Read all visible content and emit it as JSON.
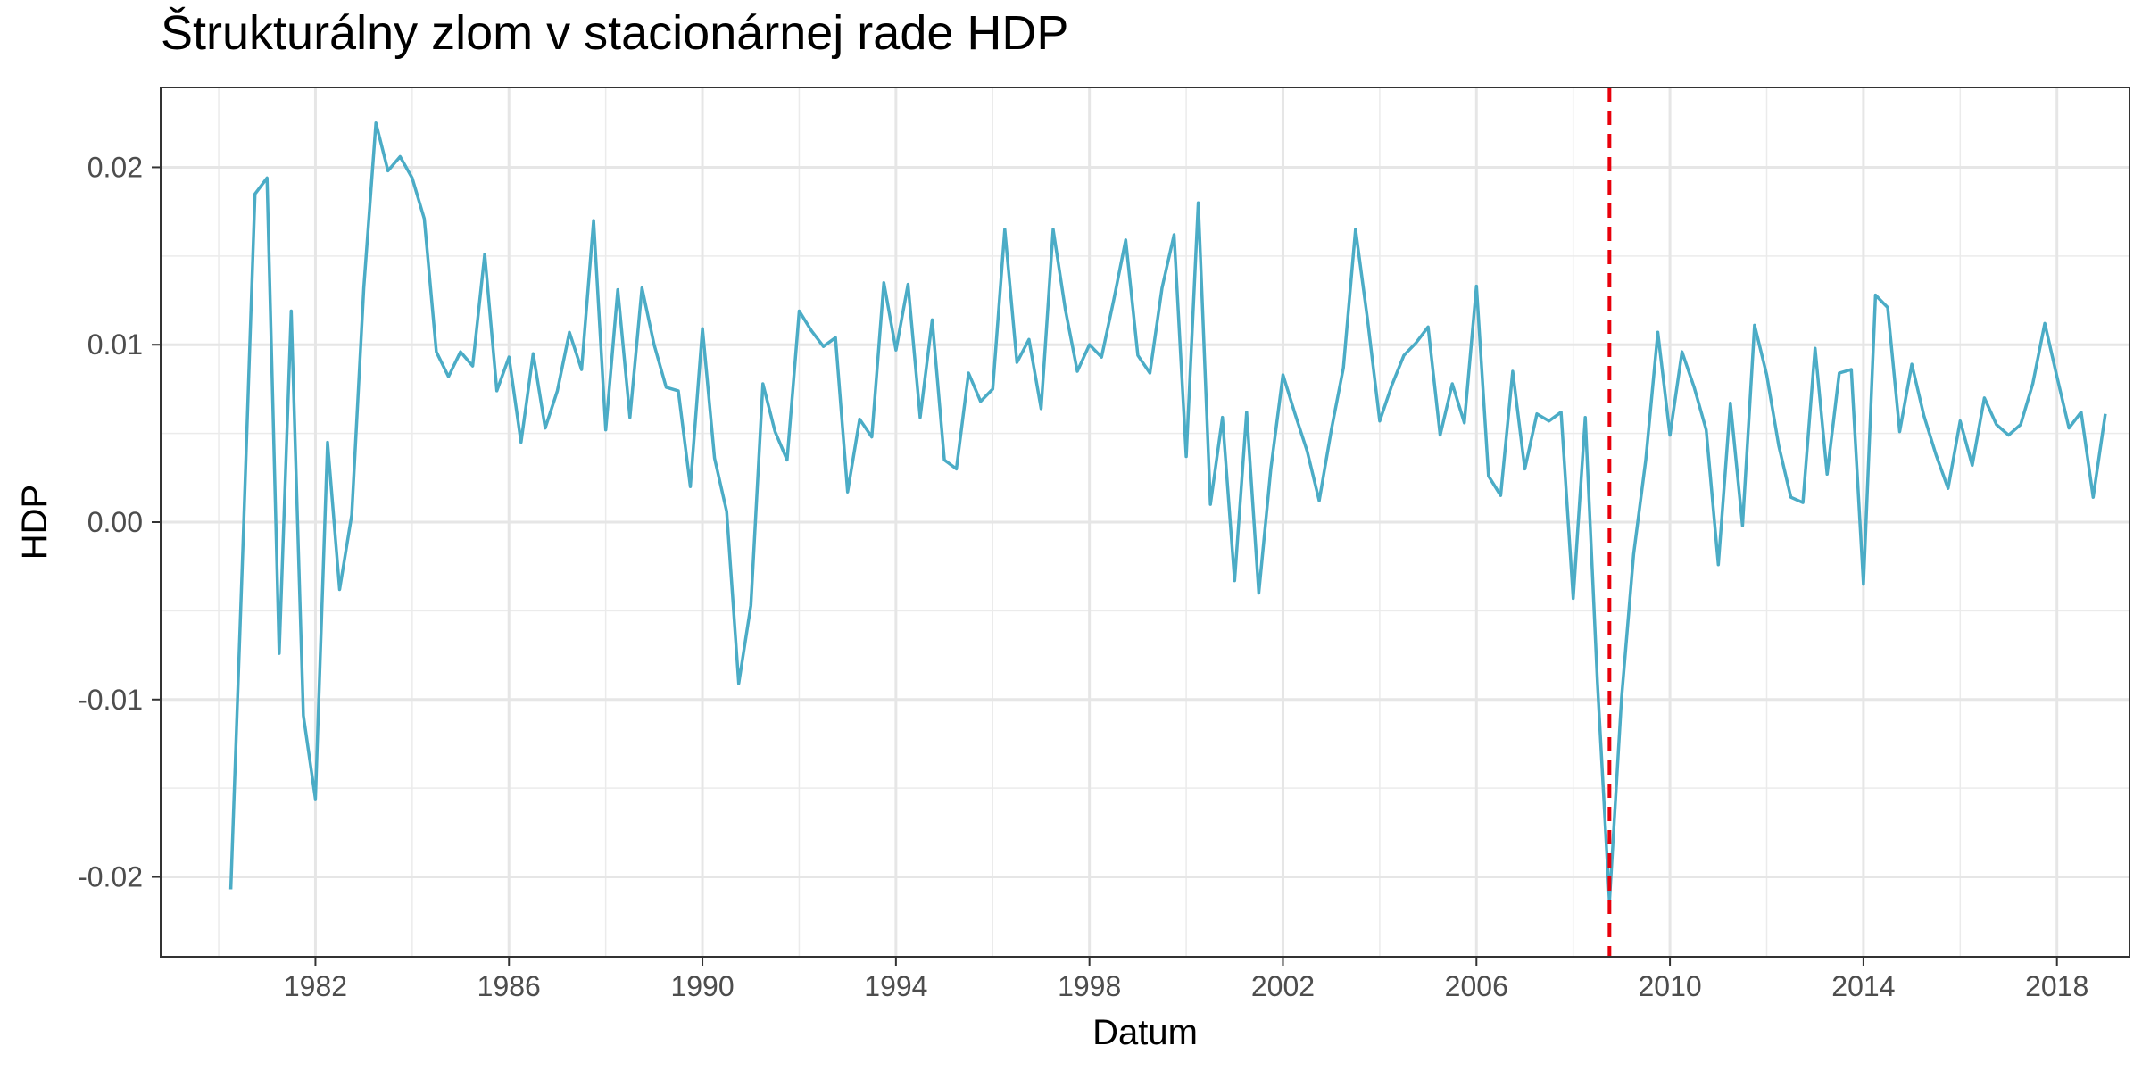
{
  "chart_data": {
    "type": "line",
    "title": "Štrukturálny zlom v stacionárnej rade HDP",
    "xlabel": "Datum",
    "ylabel": "HDP",
    "x_tick_labels": [
      "1982",
      "1986",
      "1990",
      "1994",
      "1998",
      "2002",
      "2006",
      "2010",
      "2014",
      "2018"
    ],
    "y_tick_labels": [
      "-0.02",
      "-0.01",
      "0.00",
      "0.01",
      "0.02"
    ],
    "y_ticks": [
      -0.02,
      -0.01,
      0.0,
      0.01,
      0.02
    ],
    "xlim": [
      1978.8,
      2019.5
    ],
    "ylim": [
      -0.0245,
      0.0245
    ],
    "grid": true,
    "legend": "none",
    "series": [
      {
        "color": "#4BACC6",
        "x": [
          1980.25,
          1980.5,
          1980.75,
          1981.0,
          1981.25,
          1981.5,
          1981.75,
          1982.0,
          1982.25,
          1982.5,
          1982.75,
          1983.0,
          1983.25,
          1983.5,
          1983.75,
          1984.0,
          1984.25,
          1984.5,
          1984.75,
          1985.0,
          1985.25,
          1985.5,
          1985.75,
          1986.0,
          1986.25,
          1986.5,
          1986.75,
          1987.0,
          1987.25,
          1987.5,
          1987.75,
          1988.0,
          1988.25,
          1988.5,
          1988.75,
          1989.0,
          1989.25,
          1989.5,
          1989.75,
          1990.0,
          1990.25,
          1990.5,
          1990.75,
          1991.0,
          1991.25,
          1991.5,
          1991.75,
          1992.0,
          1992.25,
          1992.5,
          1992.75,
          1993.0,
          1993.25,
          1993.5,
          1993.75,
          1994.0,
          1994.25,
          1994.5,
          1994.75,
          1995.0,
          1995.25,
          1995.5,
          1995.75,
          1996.0,
          1996.25,
          1996.5,
          1996.75,
          1997.0,
          1997.25,
          1997.5,
          1997.75,
          1998.0,
          1998.25,
          1998.5,
          1998.75,
          1999.0,
          1999.25,
          1999.5,
          1999.75,
          2000.0,
          2000.25,
          2000.5,
          2000.75,
          2001.0,
          2001.25,
          2001.5,
          2001.75,
          2002.0,
          2002.25,
          2002.5,
          2002.75,
          2003.0,
          2003.25,
          2003.5,
          2003.75,
          2004.0,
          2004.25,
          2004.5,
          2004.75,
          2005.0,
          2005.25,
          2005.5,
          2005.75,
          2006.0,
          2006.25,
          2006.5,
          2006.75,
          2007.0,
          2007.25,
          2007.5,
          2007.75,
          2008.0,
          2008.25,
          2008.5,
          2008.75,
          2009.0,
          2009.25,
          2009.5,
          2009.75,
          2010.0,
          2010.25,
          2010.5,
          2010.75,
          2011.0,
          2011.25,
          2011.5,
          2011.75,
          2012.0,
          2012.25,
          2012.5,
          2012.75,
          2013.0,
          2013.25,
          2013.5,
          2013.75,
          2014.0,
          2014.25,
          2014.5,
          2014.75,
          2015.0,
          2015.25,
          2015.5,
          2015.75,
          2016.0,
          2016.25,
          2016.5,
          2016.75,
          2017.0,
          2017.25,
          2017.5,
          2017.75,
          2018.0,
          2018.25,
          2018.5,
          2018.75,
          2019.0
        ],
        "y": [
          -0.0207,
          -0.0015,
          0.0185,
          0.0194,
          -0.0074,
          0.0119,
          -0.0109,
          -0.0156,
          0.0045,
          -0.0038,
          0.0004,
          0.0132,
          0.0225,
          0.0198,
          0.0206,
          0.0194,
          0.0171,
          0.0096,
          0.0082,
          0.0096,
          0.0088,
          0.0151,
          0.0074,
          0.0093,
          0.0045,
          0.0095,
          0.0053,
          0.0074,
          0.0107,
          0.0086,
          0.017,
          0.0052,
          0.0131,
          0.0059,
          0.0132,
          0.01,
          0.0076,
          0.0074,
          0.002,
          0.0109,
          0.0036,
          0.0006,
          -0.0091,
          -0.0047,
          0.0078,
          0.0051,
          0.0035,
          0.0119,
          0.0108,
          0.0099,
          0.0104,
          0.0017,
          0.0058,
          0.0048,
          0.0135,
          0.0097,
          0.0134,
          0.0059,
          0.0114,
          0.0035,
          0.003,
          0.0084,
          0.0068,
          0.0075,
          0.0165,
          0.009,
          0.0103,
          0.0064,
          0.0165,
          0.012,
          0.0085,
          0.01,
          0.0093,
          0.0125,
          0.0159,
          0.0094,
          0.0084,
          0.0132,
          0.0162,
          0.0037,
          0.018,
          0.001,
          0.0059,
          -0.0033,
          0.0062,
          -0.004,
          0.003,
          0.0083,
          0.0061,
          0.004,
          0.0012,
          0.0052,
          0.0087,
          0.0165,
          0.0114,
          0.0057,
          0.0077,
          0.0094,
          0.0101,
          0.011,
          0.0049,
          0.0078,
          0.0056,
          0.0133,
          0.0026,
          0.0015,
          0.0085,
          0.003,
          0.0061,
          0.0057,
          0.0062,
          -0.0043,
          0.0059,
          -0.009,
          -0.0214,
          -0.0099,
          -0.0018,
          0.0035,
          0.0107,
          0.0049,
          0.0096,
          0.0076,
          0.0052,
          -0.0024,
          0.0067,
          -0.0002,
          0.0111,
          0.0083,
          0.0043,
          0.0014,
          0.0011,
          0.0098,
          0.0027,
          0.0084,
          0.0086,
          -0.0035,
          0.0128,
          0.0121,
          0.0051,
          0.0089,
          0.006,
          0.0038,
          0.0019,
          0.0057,
          0.0032,
          0.007,
          0.0055,
          0.0049,
          0.0055,
          0.0078,
          0.0112,
          0.0082,
          0.0053,
          0.0062,
          0.0014,
          0.0061
        ]
      }
    ],
    "annotations": [
      {
        "type": "vline",
        "x": 2008.75,
        "color": "#E8000B",
        "style": "dashed"
      }
    ]
  }
}
